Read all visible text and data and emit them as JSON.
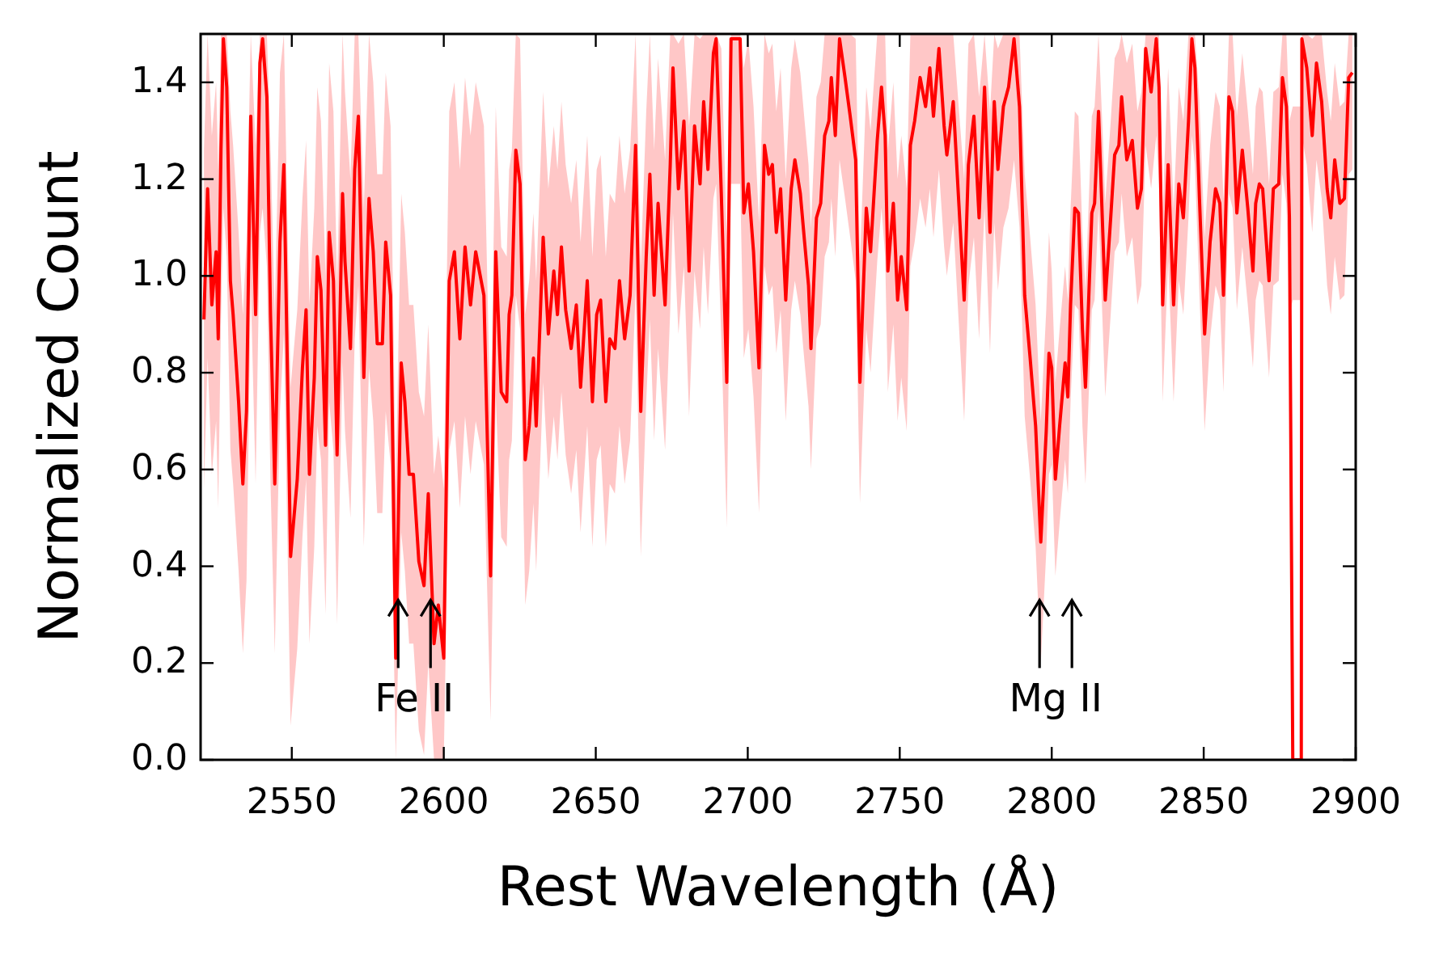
{
  "chart_data": {
    "type": "line",
    "xlabel": "Rest Wavelength (Å)",
    "ylabel": "Normalized Count",
    "xlim": [
      2520,
      2900
    ],
    "xticks": [
      2550,
      2600,
      2650,
      2700,
      2750,
      2800,
      2850,
      2900
    ],
    "ylim": [
      0,
      1.5
    ],
    "yticks": [
      {
        "value": 0,
        "label": "0.0"
      },
      {
        "value": 0.2,
        "label": "0.2"
      },
      {
        "value": 0.4,
        "label": "0.4"
      },
      {
        "value": 0.6,
        "label": "0.6"
      },
      {
        "value": 0.8,
        "label": "0.8"
      },
      {
        "value": 1,
        "label": "1.0"
      },
      {
        "value": 1.2,
        "label": "1.2"
      },
      {
        "value": 1.4,
        "label": "1.4"
      }
    ],
    "grid": false,
    "marker": "none",
    "line_style": "solid",
    "annotations": [
      {
        "text": "Fe II",
        "x": 2585,
        "y": 0.33
      },
      {
        "text": "Mg II",
        "x": 2796,
        "y": 0.33
      }
    ],
    "series": [
      {
        "color": "#ff0000",
        "x": [
          2521.1,
          2522.3,
          2523.7,
          2525.1,
          2525.8,
          2526.7,
          2527.5,
          2528.6,
          2529.8,
          2530.7,
          2532.5,
          2533.9,
          2535.1,
          2536.5,
          2538.1,
          2539.5,
          2540.4,
          2541.8,
          2543.0,
          2544.4,
          2546.1,
          2547.4,
          2549.6,
          2551.8,
          2553.5,
          2554.7,
          2555.8,
          2557.4,
          2558.4,
          2559.6,
          2561.1,
          2562.3,
          2563.7,
          2564.9,
          2566.7,
          2567.5,
          2569.3,
          2570.7,
          2571.9,
          2573.7,
          2575.4,
          2576.8,
          2578.1,
          2579.8,
          2580.9,
          2582.5,
          2584.2,
          2586.0,
          2587.2,
          2588.6,
          2590.0,
          2591.8,
          2593.5,
          2594.9,
          2596.8,
          2598.2,
          2600.0,
          2601.8,
          2603.5,
          2605.3,
          2607.0,
          2608.8,
          2610.5,
          2613.2,
          2615.4,
          2617.1,
          2618.9,
          2620.7,
          2621.5,
          2622.4,
          2623.7,
          2625.1,
          2626.8,
          2628.1,
          2629.5,
          2630.4,
          2632.7,
          2634.4,
          2636.2,
          2637.4,
          2638.7,
          2640.1,
          2641.9,
          2643.6,
          2645.0,
          2647.2,
          2648.9,
          2650.3,
          2651.6,
          2653.3,
          2654.6,
          2656.3,
          2657.8,
          2659.5,
          2661.3,
          2663.1,
          2664.8,
          2666.6,
          2667.8,
          2669.2,
          2670.5,
          2671.5,
          2672.8,
          2674.5,
          2675.4,
          2677.2,
          2679.0,
          2680.7,
          2682.5,
          2684.3,
          2685.5,
          2686.9,
          2688.7,
          2689.6,
          2691.3,
          2693.1,
          2694.5,
          2697.5,
          2698.7,
          2700.2,
          2701.9,
          2703.7,
          2705.5,
          2706.9,
          2708.1,
          2709.4,
          2710.8,
          2712.5,
          2714.3,
          2715.5,
          2717.3,
          2718.7,
          2720.0,
          2720.8,
          2722.6,
          2724.0,
          2725.3,
          2726.7,
          2727.5,
          2728.8,
          2730.2,
          2732.0,
          2733.7,
          2735.5,
          2736.9,
          2739.0,
          2740.4,
          2742.6,
          2744.0,
          2745.2,
          2746.1,
          2747.9,
          2749.3,
          2750.5,
          2752.3,
          2753.5,
          2754.9,
          2756.7,
          2758.5,
          2759.9,
          2761.1,
          2762.9,
          2764.6,
          2765.5,
          2767.6,
          2771.2,
          2772.6,
          2774.4,
          2776.1,
          2777.9,
          2779.7,
          2781.1,
          2782.3,
          2784.1,
          2785.8,
          2787.6,
          2789.4,
          2791.1,
          2792.9,
          2794.7,
          2796.4,
          2798.2,
          2799.1,
          2800.0,
          2801.2,
          2802.6,
          2804.4,
          2805.3,
          2806.2,
          2807.6,
          2808.8,
          2810.1,
          2811.1,
          2813.2,
          2814.1,
          2815.4,
          2816.8,
          2817.6,
          2819.4,
          2820.7,
          2822.1,
          2823.0,
          2824.7,
          2826.5,
          2828.2,
          2829.5,
          2830.9,
          2832.7,
          2834.4,
          2835.3,
          2836.5,
          2838.3,
          2840.1,
          2841.8,
          2843.3,
          2845.0,
          2846.1,
          2847.1,
          2848.6,
          2850.3,
          2852.1,
          2853.9,
          2855.3,
          2856.5,
          2858.3,
          2859.5,
          2860.9,
          2862.7,
          2864.5,
          2866.2,
          2867.1,
          2868.3,
          2869.4,
          2870.6,
          2871.5,
          2872.9,
          2874.7,
          2875.9,
          2877.2,
          2878.2,
          2879.3,
          2882.1,
          2882.3,
          2883.9,
          2885.7,
          2887.1,
          2888.8,
          2890.6,
          2891.8,
          2893.1,
          2894.8,
          2896.3,
          2897.7,
          2898.9
        ],
        "values": [
          0.91,
          1.18,
          0.94,
          1.05,
          0.87,
          1.26,
          1.49,
          1.39,
          0.99,
          0.92,
          0.74,
          0.57,
          0.72,
          1.33,
          0.92,
          1.44,
          1.49,
          1.37,
          0.92,
          0.57,
          1.07,
          1.23,
          0.42,
          0.58,
          0.81,
          0.93,
          0.59,
          0.79,
          1.04,
          0.97,
          0.65,
          1.09,
          0.99,
          0.63,
          1.17,
          1.03,
          0.85,
          1.22,
          1.33,
          0.79,
          1.16,
          1.05,
          0.86,
          0.86,
          1.07,
          0.96,
          0.21,
          0.82,
          0.74,
          0.59,
          0.59,
          0.41,
          0.36,
          0.55,
          0.24,
          0.32,
          0.21,
          0.99,
          1.05,
          0.87,
          1.06,
          0.94,
          1.05,
          0.96,
          0.38,
          1.05,
          0.76,
          0.74,
          0.92,
          0.96,
          1.26,
          1.19,
          0.62,
          0.69,
          0.83,
          0.69,
          1.08,
          0.88,
          1.01,
          0.92,
          1.06,
          0.93,
          0.85,
          0.94,
          0.77,
          0.99,
          0.74,
          0.92,
          0.95,
          0.74,
          0.87,
          0.85,
          0.99,
          0.87,
          0.96,
          1.27,
          0.72,
          1.04,
          1.21,
          0.96,
          1.15,
          1.06,
          0.94,
          1.23,
          1.43,
          1.18,
          1.32,
          1.01,
          1.31,
          1.19,
          1.36,
          1.22,
          1.46,
          1.49,
          1.17,
          0.78,
          1.49,
          1.49,
          1.13,
          1.19,
          1.05,
          0.81,
          1.27,
          1.21,
          1.23,
          1.09,
          1.18,
          0.95,
          1.18,
          1.24,
          1.17,
          1.07,
          0.98,
          0.85,
          1.12,
          1.15,
          1.29,
          1.32,
          1.41,
          1.29,
          1.49,
          1.41,
          1.33,
          1.24,
          0.78,
          1.14,
          1.05,
          1.28,
          1.39,
          1.29,
          1.01,
          1.15,
          0.95,
          1.04,
          0.93,
          1.27,
          1.32,
          1.41,
          1.35,
          1.43,
          1.33,
          1.47,
          1.31,
          1.25,
          1.36,
          0.95,
          1.23,
          1.33,
          1.12,
          1.39,
          1.09,
          1.36,
          1.22,
          1.35,
          1.39,
          1.49,
          1.35,
          0.96,
          0.83,
          0.69,
          0.45,
          0.68,
          0.84,
          0.81,
          0.58,
          0.69,
          0.82,
          0.75,
          0.94,
          1.14,
          1.13,
          0.89,
          0.77,
          1.13,
          1.15,
          1.34,
          1.09,
          0.95,
          1.12,
          1.25,
          1.27,
          1.37,
          1.24,
          1.28,
          1.14,
          1.18,
          1.47,
          1.38,
          1.49,
          1.39,
          0.94,
          1.23,
          0.94,
          1.19,
          1.12,
          1.32,
          1.49,
          1.43,
          1.16,
          0.88,
          1.07,
          1.18,
          1.15,
          0.96,
          1.37,
          1.34,
          1.13,
          1.26,
          1.14,
          1.01,
          1.15,
          1.19,
          1.18,
          1.07,
          0.99,
          1.18,
          1.19,
          1.41,
          1.35,
          1.12,
          0,
          0,
          1.49,
          1.43,
          1.29,
          1.44,
          1.36,
          1.18,
          1.12,
          1.24,
          1.15,
          1.16,
          1.41,
          1.42
        ],
        "upper": [
          1.26,
          1.5,
          1.29,
          1.4,
          1.22,
          1.5,
          1.5,
          1.5,
          1.34,
          1.27,
          1.09,
          0.92,
          1.07,
          1.5,
          1.27,
          1.5,
          1.5,
          1.5,
          1.27,
          0.92,
          1.42,
          1.5,
          0.77,
          0.93,
          1.16,
          1.28,
          0.94,
          1.14,
          1.39,
          1.32,
          1.0,
          1.44,
          1.34,
          0.98,
          1.5,
          1.38,
          1.2,
          1.5,
          1.5,
          1.14,
          1.5,
          1.4,
          1.21,
          1.21,
          1.42,
          1.31,
          0.56,
          1.17,
          1.09,
          0.94,
          0.94,
          0.76,
          0.71,
          0.9,
          0.59,
          0.67,
          0.56,
          1.34,
          1.4,
          1.22,
          1.41,
          1.29,
          1.4,
          1.31,
          0.68,
          1.35,
          1.06,
          1.04,
          1.22,
          1.26,
          1.5,
          1.49,
          0.92,
          0.99,
          1.13,
          0.99,
          1.38,
          1.18,
          1.31,
          1.22,
          1.36,
          1.23,
          1.15,
          1.24,
          1.07,
          1.29,
          1.04,
          1.22,
          1.25,
          1.04,
          1.17,
          1.15,
          1.29,
          1.17,
          1.26,
          1.5,
          1.02,
          1.34,
          1.5,
          1.26,
          1.45,
          1.36,
          1.24,
          1.5,
          1.5,
          1.48,
          1.5,
          1.31,
          1.5,
          1.49,
          1.5,
          1.5,
          1.5,
          1.5,
          1.47,
          1.08,
          1.5,
          1.5,
          1.43,
          1.49,
          1.35,
          1.11,
          1.5,
          1.46,
          1.48,
          1.34,
          1.43,
          1.2,
          1.43,
          1.49,
          1.42,
          1.32,
          1.23,
          1.1,
          1.37,
          1.4,
          1.5,
          1.5,
          1.5,
          1.5,
          1.5,
          1.5,
          1.5,
          1.49,
          1.03,
          1.39,
          1.3,
          1.5,
          1.5,
          1.5,
          1.26,
          1.4,
          1.2,
          1.29,
          1.18,
          1.5,
          1.5,
          1.5,
          1.5,
          1.5,
          1.5,
          1.5,
          1.5,
          1.5,
          1.5,
          1.2,
          1.48,
          1.5,
          1.37,
          1.5,
          1.34,
          1.5,
          1.47,
          1.5,
          1.5,
          1.5,
          1.5,
          1.21,
          1.08,
          0.94,
          0.7,
          0.93,
          1.09,
          1.01,
          0.78,
          0.89,
          1.02,
          0.95,
          1.14,
          1.34,
          1.33,
          1.09,
          0.97,
          1.33,
          1.35,
          1.5,
          1.29,
          1.15,
          1.32,
          1.45,
          1.47,
          1.5,
          1.44,
          1.48,
          1.34,
          1.38,
          1.5,
          1.5,
          1.5,
          1.5,
          1.14,
          1.43,
          1.14,
          1.39,
          1.32,
          1.5,
          1.5,
          1.5,
          1.36,
          1.08,
          1.27,
          1.38,
          1.35,
          1.16,
          1.5,
          1.5,
          1.33,
          1.46,
          1.34,
          1.21,
          1.35,
          1.39,
          1.38,
          1.27,
          1.19,
          1.38,
          1.39,
          1.5,
          1.5,
          1.32,
          1.35,
          1.35,
          1.5,
          1.5,
          1.49,
          1.5,
          1.5,
          1.38,
          1.32,
          1.44,
          1.35,
          1.36,
          1.5,
          1.5
        ],
        "lower": [
          0.56,
          0.83,
          0.59,
          0.7,
          0.52,
          0.91,
          1.14,
          1.04,
          0.64,
          0.57,
          0.39,
          0.22,
          0.37,
          0.98,
          0.57,
          1.09,
          1.14,
          1.02,
          0.57,
          0.22,
          0.72,
          0.88,
          0.07,
          0.23,
          0.46,
          0.58,
          0.24,
          0.44,
          0.69,
          0.62,
          0.3,
          0.74,
          0.64,
          0.28,
          0.82,
          0.68,
          0.5,
          0.87,
          0.98,
          0.44,
          0.81,
          0.7,
          0.51,
          0.51,
          0.72,
          0.61,
          0,
          0.47,
          0.39,
          0.24,
          0.24,
          0.06,
          0.01,
          0.2,
          0,
          0,
          0,
          0.64,
          0.7,
          0.52,
          0.71,
          0.59,
          0.7,
          0.61,
          0.08,
          0.75,
          0.46,
          0.44,
          0.62,
          0.66,
          0.96,
          0.89,
          0.32,
          0.39,
          0.53,
          0.39,
          0.78,
          0.58,
          0.71,
          0.62,
          0.76,
          0.63,
          0.55,
          0.64,
          0.47,
          0.69,
          0.44,
          0.62,
          0.65,
          0.44,
          0.57,
          0.55,
          0.69,
          0.57,
          0.66,
          0.97,
          0.42,
          0.74,
          0.91,
          0.66,
          0.85,
          0.76,
          0.64,
          0.93,
          1.13,
          0.88,
          1.02,
          0.71,
          1.01,
          0.89,
          1.06,
          0.92,
          1.16,
          1.19,
          0.87,
          0.48,
          1.19,
          1.19,
          0.83,
          0.89,
          0.75,
          0.51,
          1.02,
          0.96,
          0.98,
          0.84,
          0.93,
          0.7,
          0.93,
          0.99,
          0.92,
          0.82,
          0.73,
          0.6,
          0.87,
          0.9,
          1.04,
          1.07,
          1.16,
          1.04,
          1.24,
          1.16,
          1.08,
          0.99,
          0.53,
          0.89,
          0.8,
          1.03,
          1.14,
          1.04,
          0.76,
          0.9,
          0.7,
          0.79,
          0.68,
          1.02,
          1.07,
          1.16,
          1.1,
          1.18,
          1.08,
          1.22,
          1.06,
          1,
          1.11,
          0.7,
          0.98,
          1.08,
          0.87,
          1.14,
          0.84,
          1.11,
          0.97,
          1.1,
          1.14,
          1.24,
          1.1,
          0.71,
          0.58,
          0.44,
          0.2,
          0.43,
          0.59,
          0.61,
          0.38,
          0.49,
          0.62,
          0.55,
          0.74,
          0.94,
          0.93,
          0.69,
          0.57,
          0.93,
          0.95,
          1.14,
          0.89,
          0.75,
          0.92,
          1.05,
          1.07,
          1.17,
          1.04,
          1.08,
          0.94,
          0.98,
          1.27,
          1.18,
          1.29,
          1.19,
          0.74,
          1.03,
          0.74,
          0.99,
          0.92,
          1.12,
          1.29,
          1.23,
          0.96,
          0.68,
          0.87,
          0.98,
          0.95,
          0.76,
          1.17,
          1.14,
          0.93,
          1.06,
          0.94,
          0.81,
          0.95,
          0.99,
          0.98,
          0.87,
          0.79,
          0.98,
          0.99,
          1.21,
          1.15,
          0.92,
          0.95,
          0.95,
          1.29,
          1.23,
          1.09,
          1.24,
          1.16,
          0.98,
          0.92,
          1.04,
          0.95,
          0.96,
          1.21,
          1.22
        ]
      }
    ]
  }
}
